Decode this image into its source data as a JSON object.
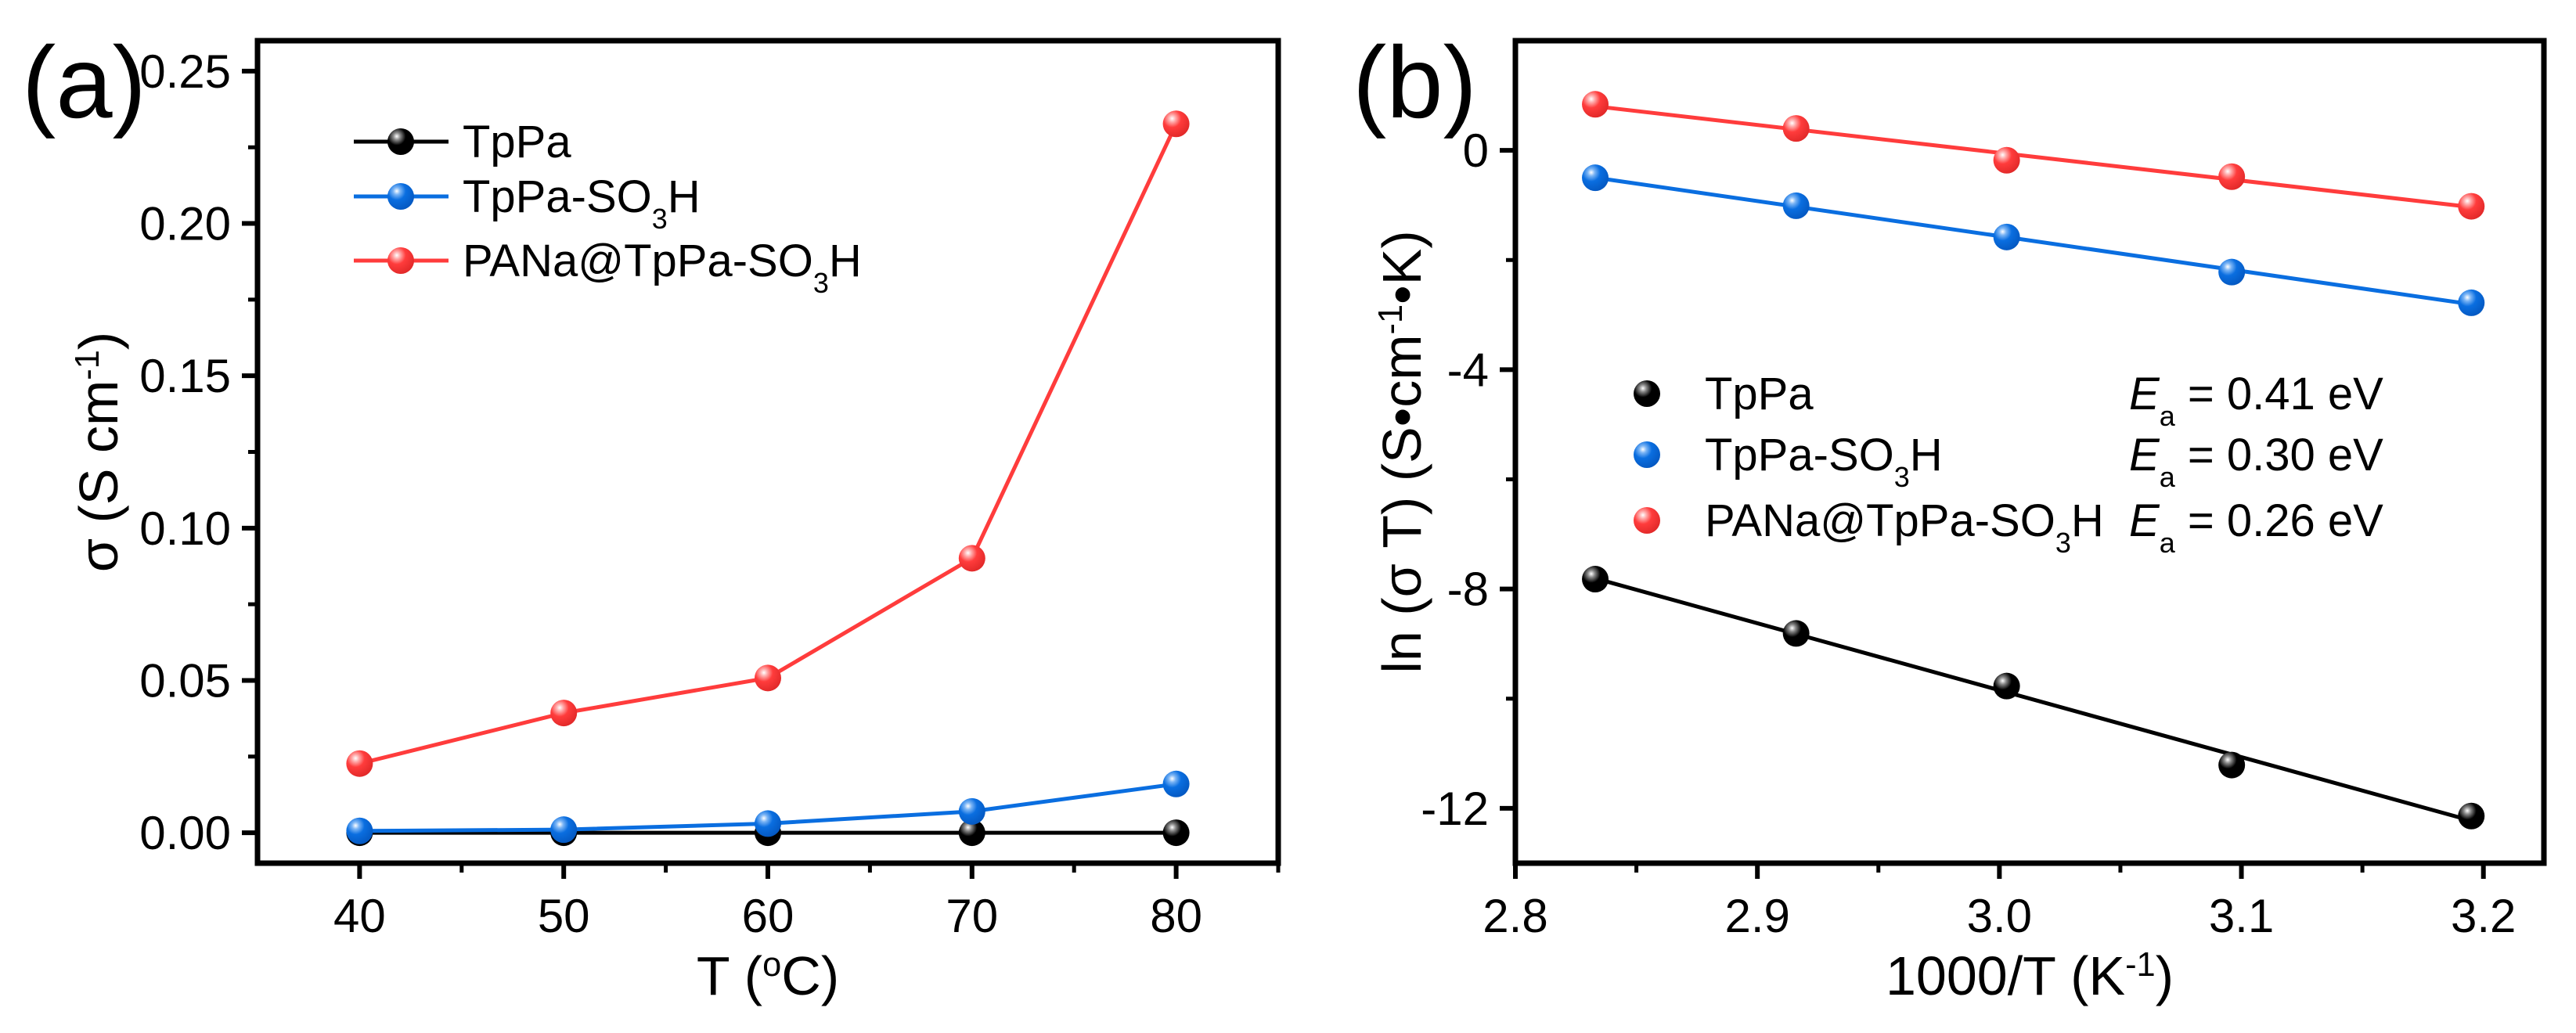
{
  "chart_data": [
    {
      "panel_label": "(a)",
      "type": "line",
      "xlabel": "T (^{o}C)",
      "ylabel": "σ (S cm^{-1})",
      "xlim": [
        35,
        85
      ],
      "ylim": [
        -0.01,
        0.26
      ],
      "xticks": [
        40,
        50,
        60,
        70,
        80
      ],
      "xtick_labels": [
        "40",
        "50",
        "60",
        "70",
        "80"
      ],
      "yticks": [
        0,
        0.05,
        0.1,
        0.15,
        0.2,
        0.25
      ],
      "ytick_labels": [
        "0.00",
        "0.05",
        "0.10",
        "0.15",
        "0.20",
        "0.25"
      ],
      "grid": false,
      "legend_position": "top-left",
      "x": [
        40,
        50,
        60,
        70,
        80
      ],
      "series": [
        {
          "name": "TpPa",
          "color": "#000000",
          "values": [
            0.0,
            0.0,
            0.0,
            0.0,
            0.0
          ]
        },
        {
          "name": "TpPa-SO_{3}H",
          "color": "#0a6ee0",
          "values": [
            0.0006,
            0.001,
            0.003,
            0.007,
            0.016
          ]
        },
        {
          "name": "PANa@TpPa-SO_{3}H",
          "color": "#ff3c3c",
          "values": [
            0.0227,
            0.0393,
            0.0508,
            0.0901,
            0.2327
          ]
        }
      ]
    },
    {
      "panel_label": "(b)",
      "type": "scatter",
      "fit": "linear",
      "xlabel": "1000/T (K^{-1})",
      "ylabel": "ln (σ T) (S•cm^{-1}•K)",
      "xlim": [
        2.8,
        3.225
      ],
      "ylim": [
        -13,
        2
      ],
      "xticks": [
        2.8,
        2.9,
        3.0,
        3.1,
        3.2
      ],
      "xtick_labels": [
        "2.8",
        "2.9",
        "3.0",
        "3.1",
        "3.2"
      ],
      "yticks": [
        0,
        -4,
        -8,
        -12
      ],
      "ytick_labels": [
        "0",
        "-4",
        "-8",
        "-12"
      ],
      "grid": false,
      "legend_position": "center-left",
      "x": [
        2.833,
        2.916,
        3.003,
        3.096,
        3.195
      ],
      "series": [
        {
          "name": "TpPa",
          "color": "#000000",
          "values": [
            -7.82,
            -8.81,
            -9.77,
            -11.21,
            -12.14
          ],
          "annotation": {
            "symbol": "E",
            "subscript": "a",
            "value": " = 0.41 eV"
          }
        },
        {
          "name": "TpPa-SO_{3}H",
          "color": "#0a6ee0",
          "values": [
            -0.5,
            -1.01,
            -1.58,
            -2.22,
            -2.78
          ],
          "annotation": {
            "symbol": "E",
            "subscript": "a",
            "value": " = 0.30 eV"
          }
        },
        {
          "name": "PANa@TpPa-SO_{3}H",
          "color": "#ff3c3c",
          "values": [
            0.84,
            0.4,
            -0.18,
            -0.48,
            -1.02
          ],
          "annotation": {
            "symbol": "E",
            "subscript": "a",
            "value": " = 0.26 eV"
          }
        }
      ]
    }
  ]
}
